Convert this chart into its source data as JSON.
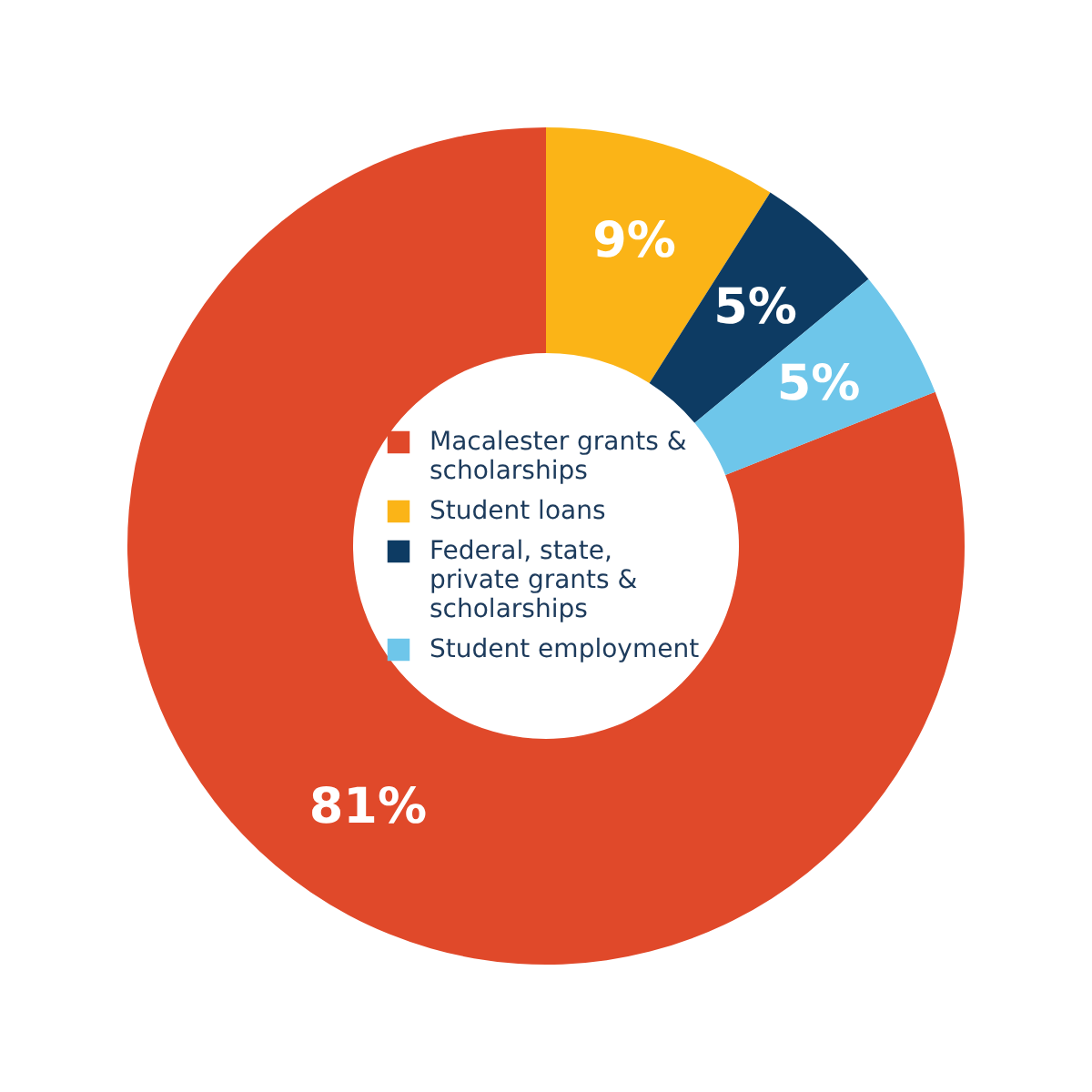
{
  "chart_data": {
    "type": "donut",
    "categories": [
      "Macalester grants & scholarships",
      "Student loans",
      "Federal, state, private grants & scholarships",
      "Student employment"
    ],
    "values": [
      81,
      9,
      5,
      5
    ],
    "colors": [
      "#e0492a",
      "#fbb417",
      "#0d3b63",
      "#6ec6ea"
    ],
    "value_labels": [
      "81%",
      "9%",
      "5%",
      "5%"
    ],
    "legend": "center"
  }
}
